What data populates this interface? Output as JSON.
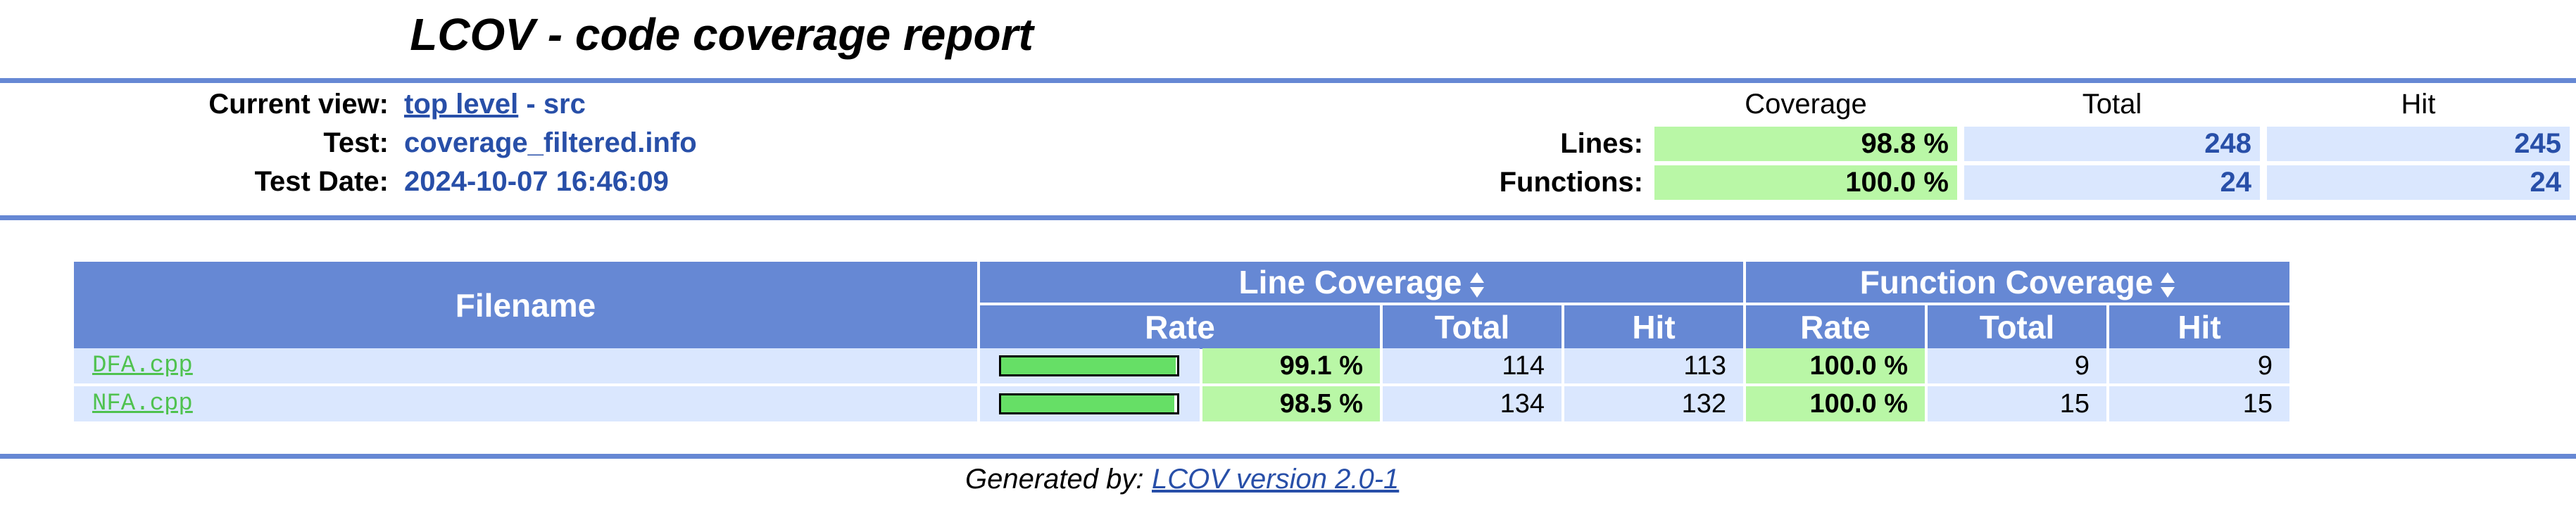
{
  "title": "LCOV - code coverage report",
  "info": {
    "current_view_label": "Current view:",
    "current_view_link": "top level",
    "current_view_sep": " - ",
    "current_view_dir": "src",
    "test_label": "Test:",
    "test_value": "coverage_filtered.info",
    "date_label": "Test Date:",
    "date_value": "2024-10-07 16:46:09"
  },
  "summary": {
    "headers": {
      "coverage": "Coverage",
      "total": "Total",
      "hit": "Hit"
    },
    "lines": {
      "label": "Lines:",
      "coverage": "98.8 %",
      "total": "248",
      "hit": "245"
    },
    "functions": {
      "label": "Functions:",
      "coverage": "100.0 %",
      "total": "24",
      "hit": "24"
    }
  },
  "table": {
    "filename_header": "Filename",
    "line_coverage_header": "Line Coverage",
    "function_coverage_header": "Function Coverage",
    "sub_rate": "Rate",
    "sub_total": "Total",
    "sub_hit": "Hit",
    "rows": [
      {
        "filename": "DFA.cpp",
        "line_rate_fraction": 0.991,
        "line_rate": "99.1 %",
        "line_total": "114",
        "line_hit": "113",
        "func_rate": "100.0 %",
        "func_total": "9",
        "func_hit": "9"
      },
      {
        "filename": "NFA.cpp",
        "line_rate_fraction": 0.985,
        "line_rate": "98.5 %",
        "line_total": "134",
        "line_hit": "132",
        "func_rate": "100.0 %",
        "func_total": "15",
        "func_hit": "15"
      }
    ]
  },
  "footer": {
    "label": "Generated by: ",
    "link": "LCOV version 2.0-1"
  },
  "colors": {
    "rule": "#6688d4",
    "header_bg": "#6688d4",
    "cell_blue": "#dae7fe",
    "cell_green": "#b9f7a6",
    "bar_fill": "#66df66",
    "link_blue": "#284fa8",
    "file_link": "#4fc24f"
  },
  "icons": {
    "sort": "sort-updown-icon"
  }
}
